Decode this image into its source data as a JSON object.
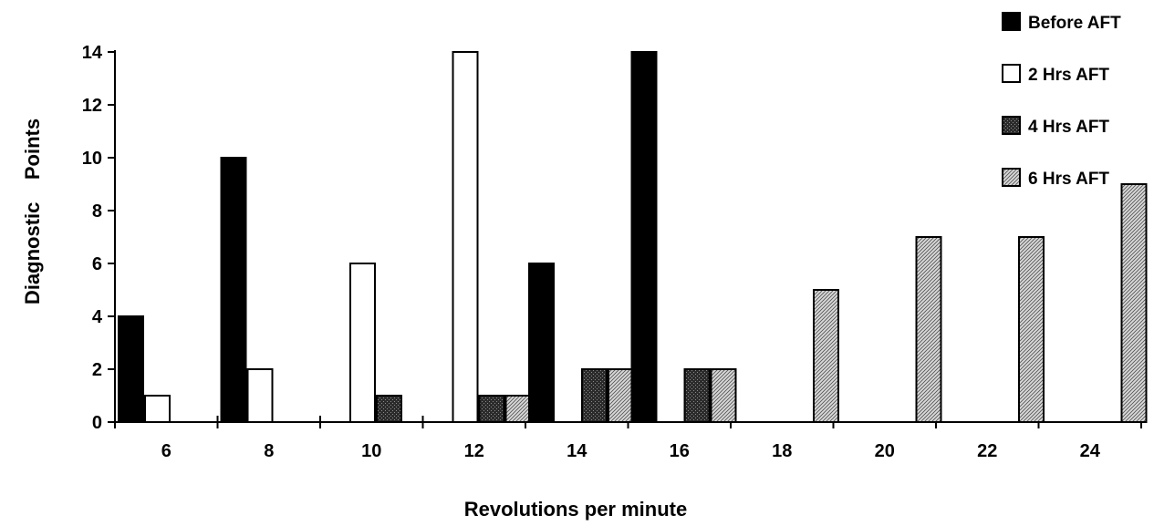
{
  "chart_data": {
    "type": "bar",
    "title": "",
    "xlabel": "Revolutions per minute",
    "ylabel": "Diagnostic    Points",
    "ylim": [
      0,
      14
    ],
    "yticks": [
      0,
      2,
      4,
      6,
      8,
      10,
      12,
      14
    ],
    "categories": [
      "6",
      "8",
      "10",
      "12",
      "14",
      "16",
      "18",
      "20",
      "22",
      "24"
    ],
    "legend_position": "top-right",
    "series": [
      {
        "name": "Before AFT",
        "pattern": "solid-black",
        "color": "#000000",
        "values": [
          4,
          10,
          0,
          0,
          6,
          14,
          0,
          0,
          0,
          0
        ]
      },
      {
        "name": "2 Hrs AFT",
        "pattern": "white",
        "color": "#ffffff",
        "values": [
          1,
          2,
          6,
          14,
          0,
          0,
          0,
          0,
          0,
          0
        ]
      },
      {
        "name": "4 Hrs AFT",
        "pattern": "dark-dotted",
        "color": "#2a2a2a",
        "values": [
          0,
          0,
          1,
          1,
          2,
          2,
          0,
          0,
          0,
          0
        ]
      },
      {
        "name": "6 Hrs AFT",
        "pattern": "light-hatched",
        "color": "#b8b8b8",
        "values": [
          0,
          0,
          0,
          1,
          2,
          2,
          5,
          7,
          7,
          9
        ]
      }
    ]
  }
}
